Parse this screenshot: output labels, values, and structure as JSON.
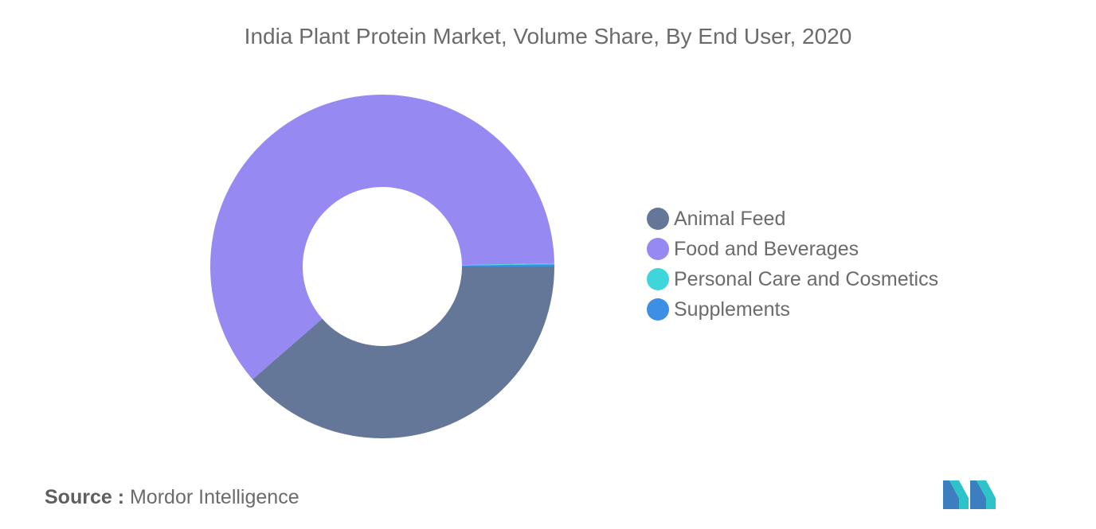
{
  "chart_data": {
    "type": "pie",
    "title": "India Plant Protein Market, Volume Share, By End User, 2020",
    "categories": [
      "Animal Feed",
      "Food and Beverages",
      "Personal Care and Cosmetics",
      "Supplements"
    ],
    "values": [
      38.6,
      61.1,
      0.1,
      0.2
    ],
    "value_unit": "%",
    "colors": [
      "#657798",
      "#9789f2",
      "#3ed6da",
      "#3d8fe6"
    ],
    "donut": true,
    "legend_placement": "right"
  },
  "source": {
    "label": "Source :",
    "text": "Mordor Intelligence"
  },
  "logo": {
    "icon": "mordor-intelligence-logo",
    "colors": [
      "#3d7ec0",
      "#2ec3c8"
    ]
  }
}
